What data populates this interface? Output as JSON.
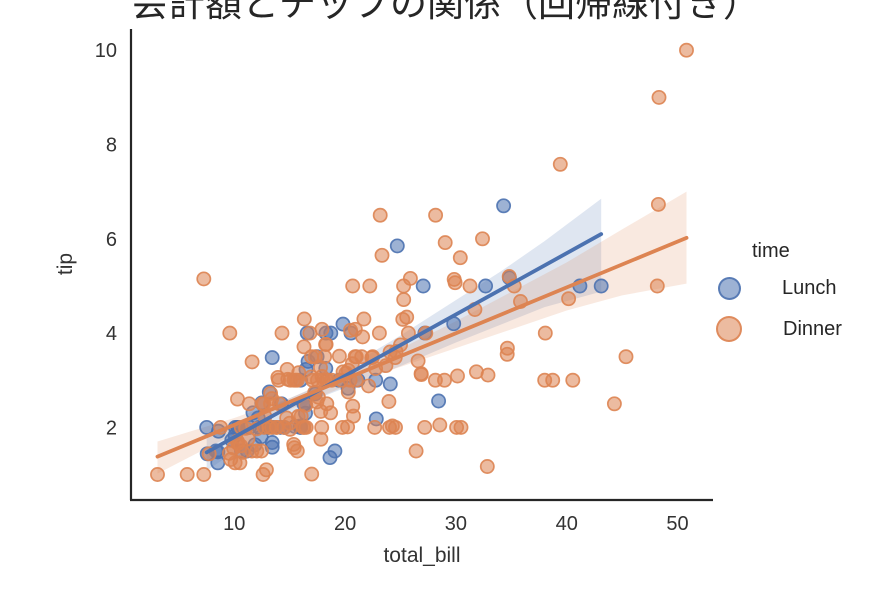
{
  "chart_data": {
    "type": "scatter",
    "title": "会計額とチップの関係（回帰線付き）",
    "xlabel": "total_bill",
    "ylabel": "tip",
    "xlim": [
      0.68,
      53.2
    ],
    "ylim": [
      0.46,
      10.45
    ],
    "x_ticks": [
      10,
      20,
      30,
      40,
      50
    ],
    "y_ticks": [
      2,
      4,
      6,
      8,
      10
    ],
    "grid": false,
    "legend": {
      "title": "time",
      "position": "right-outside",
      "entries": [
        {
          "label": "Lunch",
          "color": "#4C72B0"
        },
        {
          "label": "Dinner",
          "color": "#DD8452"
        }
      ]
    },
    "series": [
      {
        "name": "Lunch",
        "color": "#4C72B0",
        "regression_line": {
          "x": [
            7.51,
            43.11
          ],
          "y": [
            1.47,
            6.1
          ]
        },
        "ci_upper": [
          [
            7.51,
            1.85
          ],
          [
            12,
            2.3
          ],
          [
            17.2,
            2.85
          ],
          [
            25,
            3.95
          ],
          [
            34,
            5.3
          ],
          [
            38,
            5.95
          ],
          [
            43.11,
            6.85
          ]
        ],
        "ci_lower": [
          [
            7.51,
            1.08
          ],
          [
            12,
            1.8
          ],
          [
            17.2,
            2.58
          ],
          [
            25,
            3.3
          ],
          [
            30,
            3.8
          ],
          [
            38,
            4.55
          ],
          [
            43.11,
            4.88
          ]
        ],
        "points": [
          [
            27.2,
            4.0
          ],
          [
            22.76,
            3.0
          ],
          [
            17.29,
            2.71
          ],
          [
            19.44,
            3.0
          ],
          [
            16.66,
            3.4
          ],
          [
            10.07,
            1.83
          ],
          [
            32.68,
            5.0
          ],
          [
            15.98,
            2.03
          ],
          [
            34.83,
            5.17
          ],
          [
            13.03,
            2.0
          ],
          [
            18.28,
            4.0
          ],
          [
            24.71,
            5.85
          ],
          [
            21.16,
            3.0
          ],
          [
            10.65,
            1.5
          ],
          [
            12.43,
            1.8
          ],
          [
            24.08,
            2.92
          ],
          [
            11.69,
            2.31
          ],
          [
            13.42,
            1.68
          ],
          [
            14.26,
            2.5
          ],
          [
            15.95,
            2.0
          ],
          [
            12.48,
            2.52
          ],
          [
            29.8,
            4.2
          ],
          [
            8.52,
            1.48
          ],
          [
            14.52,
            2.0
          ],
          [
            11.38,
            2.0
          ],
          [
            22.82,
            2.18
          ],
          [
            19.08,
            1.5
          ],
          [
            20.27,
            2.83
          ],
          [
            11.17,
            1.5
          ],
          [
            12.26,
            2.0
          ],
          [
            18.26,
            3.25
          ],
          [
            8.51,
            1.25
          ],
          [
            10.33,
            2.0
          ],
          [
            14.15,
            2.0
          ],
          [
            16.0,
            2.0
          ],
          [
            13.16,
            2.75
          ],
          [
            17.47,
            3.5
          ],
          [
            34.3,
            6.7
          ],
          [
            41.19,
            5.0
          ],
          [
            27.05,
            5.0
          ],
          [
            16.43,
            2.3
          ],
          [
            8.35,
            1.5
          ],
          [
            18.64,
            1.36
          ],
          [
            11.87,
            1.63
          ],
          [
            9.78,
            1.73
          ],
          [
            7.51,
            2.0
          ],
          [
            19.81,
            4.19
          ],
          [
            28.44,
            2.56
          ],
          [
            15.48,
            2.02
          ],
          [
            16.58,
            4.0
          ],
          [
            7.56,
            1.44
          ],
          [
            10.34,
            2.0
          ],
          [
            43.11,
            5.0
          ],
          [
            13.0,
            2.0
          ],
          [
            13.51,
            2.0
          ],
          [
            18.71,
            4.0
          ],
          [
            12.74,
            2.01
          ],
          [
            13.0,
            2.0
          ],
          [
            16.4,
            2.5
          ],
          [
            20.53,
            4.0
          ],
          [
            16.47,
            3.23
          ],
          [
            12.16,
            2.2
          ],
          [
            13.42,
            3.48
          ],
          [
            8.58,
            1.92
          ],
          [
            15.98,
            3.0
          ],
          [
            13.42,
            1.58
          ],
          [
            16.27,
            2.5
          ],
          [
            10.09,
            2.0
          ]
        ]
      },
      {
        "name": "Dinner",
        "color": "#DD8452",
        "regression_line": {
          "x": [
            3.07,
            50.81
          ],
          "y": [
            1.38,
            6.02
          ]
        },
        "ci_upper": [
          [
            3.07,
            1.7
          ],
          [
            10,
            2.2
          ],
          [
            15,
            2.62
          ],
          [
            20.8,
            3.18
          ],
          [
            30,
            4.25
          ],
          [
            40,
            5.5
          ],
          [
            45,
            6.2
          ],
          [
            50.81,
            7.0
          ]
        ],
        "ci_lower": [
          [
            3.07,
            1.02
          ],
          [
            10,
            1.86
          ],
          [
            15,
            2.38
          ],
          [
            20.8,
            2.95
          ],
          [
            30,
            3.68
          ],
          [
            40,
            4.48
          ],
          [
            45,
            4.8
          ],
          [
            50.81,
            5.05
          ]
        ],
        "points": [
          [
            16.99,
            1.01
          ],
          [
            10.34,
            1.66
          ],
          [
            21.01,
            3.5
          ],
          [
            23.68,
            3.31
          ],
          [
            24.59,
            3.61
          ],
          [
            25.29,
            4.71
          ],
          [
            8.77,
            2.0
          ],
          [
            26.88,
            3.12
          ],
          [
            15.04,
            1.96
          ],
          [
            14.78,
            3.23
          ],
          [
            10.27,
            1.71
          ],
          [
            35.26,
            5.0
          ],
          [
            15.42,
            1.57
          ],
          [
            18.43,
            3.0
          ],
          [
            14.83,
            3.02
          ],
          [
            21.58,
            3.92
          ],
          [
            10.33,
            1.67
          ],
          [
            16.29,
            3.71
          ],
          [
            16.97,
            3.5
          ],
          [
            20.65,
            3.35
          ],
          [
            17.92,
            4.08
          ],
          [
            20.29,
            2.75
          ],
          [
            15.77,
            2.23
          ],
          [
            39.42,
            7.58
          ],
          [
            19.82,
            3.18
          ],
          [
            17.81,
            2.34
          ],
          [
            13.37,
            2.0
          ],
          [
            12.69,
            2.0
          ],
          [
            21.7,
            4.3
          ],
          [
            19.65,
            3.0
          ],
          [
            9.55,
            1.45
          ],
          [
            18.35,
            2.5
          ],
          [
            15.06,
            3.0
          ],
          [
            20.69,
            2.45
          ],
          [
            17.78,
            3.27
          ],
          [
            24.06,
            3.6
          ],
          [
            16.31,
            2.0
          ],
          [
            16.93,
            3.07
          ],
          [
            18.69,
            2.31
          ],
          [
            31.27,
            5.0
          ],
          [
            16.04,
            2.24
          ],
          [
            17.46,
            2.54
          ],
          [
            13.94,
            3.06
          ],
          [
            9.68,
            1.32
          ],
          [
            30.4,
            5.6
          ],
          [
            18.29,
            3.0
          ],
          [
            22.23,
            5.0
          ],
          [
            32.4,
            6.0
          ],
          [
            28.55,
            2.05
          ],
          [
            18.04,
            3.0
          ],
          [
            12.54,
            2.5
          ],
          [
            10.29,
            2.6
          ],
          [
            34.81,
            5.2
          ],
          [
            9.94,
            1.56
          ],
          [
            25.56,
            4.34
          ],
          [
            19.49,
            3.51
          ],
          [
            38.01,
            3.0
          ],
          [
            26.41,
            1.5
          ],
          [
            11.24,
            1.76
          ],
          [
            48.27,
            6.73
          ],
          [
            20.29,
            3.21
          ],
          [
            13.81,
            2.0
          ],
          [
            11.02,
            1.98
          ],
          [
            18.29,
            3.76
          ],
          [
            17.59,
            2.64
          ],
          [
            20.08,
            3.15
          ],
          [
            16.45,
            2.47
          ],
          [
            3.07,
            1.0
          ],
          [
            20.23,
            2.01
          ],
          [
            15.01,
            2.09
          ],
          [
            12.02,
            1.97
          ],
          [
            17.07,
            3.0
          ],
          [
            26.86,
            3.14
          ],
          [
            25.28,
            5.0
          ],
          [
            14.73,
            2.2
          ],
          [
            10.51,
            1.25
          ],
          [
            17.92,
            3.08
          ],
          [
            28.97,
            3.0
          ],
          [
            22.49,
            3.5
          ],
          [
            5.75,
            1.0
          ],
          [
            16.32,
            4.3
          ],
          [
            22.75,
            3.25
          ],
          [
            40.17,
            4.73
          ],
          [
            27.28,
            4.0
          ],
          [
            12.03,
            1.5
          ],
          [
            21.01,
            3.0
          ],
          [
            12.46,
            1.5
          ],
          [
            11.35,
            2.5
          ],
          [
            15.38,
            3.0
          ],
          [
            44.3,
            2.5
          ],
          [
            22.42,
            3.48
          ],
          [
            20.92,
            4.08
          ],
          [
            15.36,
            1.64
          ],
          [
            20.49,
            4.06
          ],
          [
            25.21,
            4.29
          ],
          [
            18.24,
            3.76
          ],
          [
            14.31,
            4.0
          ],
          [
            14.0,
            3.0
          ],
          [
            7.25,
            1.0
          ],
          [
            38.07,
            4.0
          ],
          [
            23.95,
            2.55
          ],
          [
            25.71,
            4.0
          ],
          [
            17.31,
            3.5
          ],
          [
            29.93,
            5.07
          ],
          [
            14.07,
            2.5
          ],
          [
            13.13,
            2.0
          ],
          [
            17.26,
            2.74
          ],
          [
            24.55,
            2.0
          ],
          [
            19.77,
            2.0
          ],
          [
            29.85,
            5.14
          ],
          [
            48.17,
            5.0
          ],
          [
            25.0,
            3.75
          ],
          [
            13.39,
            2.61
          ],
          [
            16.49,
            2.0
          ],
          [
            21.5,
            3.5
          ],
          [
            12.66,
            2.5
          ],
          [
            16.21,
            2.0
          ],
          [
            13.81,
            2.0
          ],
          [
            17.51,
            3.0
          ],
          [
            24.52,
            3.48
          ],
          [
            20.76,
            2.24
          ],
          [
            31.71,
            4.5
          ],
          [
            10.59,
            1.61
          ],
          [
            10.63,
            2.0
          ],
          [
            50.81,
            10.0
          ],
          [
            15.81,
            3.16
          ],
          [
            7.25,
            5.15
          ],
          [
            31.85,
            3.18
          ],
          [
            16.82,
            4.0
          ],
          [
            32.9,
            3.11
          ],
          [
            17.89,
            2.0
          ],
          [
            14.48,
            2.0
          ],
          [
            9.6,
            4.0
          ],
          [
            34.63,
            3.55
          ],
          [
            34.65,
            3.68
          ],
          [
            23.33,
            5.65
          ],
          [
            45.35,
            3.5
          ],
          [
            23.17,
            6.5
          ],
          [
            40.55,
            3.0
          ],
          [
            20.69,
            5.0
          ],
          [
            20.9,
            3.5
          ],
          [
            30.46,
            2.0
          ],
          [
            18.15,
            3.5
          ],
          [
            23.1,
            4.0
          ],
          [
            15.69,
            1.5
          ],
          [
            26.59,
            3.41
          ],
          [
            38.73,
            3.0
          ],
          [
            24.27,
            2.03
          ],
          [
            12.76,
            2.23
          ],
          [
            30.06,
            2.0
          ],
          [
            25.89,
            5.16
          ],
          [
            48.33,
            9.0
          ],
          [
            13.27,
            2.5
          ],
          [
            28.17,
            6.5
          ],
          [
            12.9,
            1.1
          ],
          [
            28.15,
            3.0
          ],
          [
            11.59,
            1.5
          ],
          [
            7.74,
            1.44
          ],
          [
            30.14,
            3.09
          ],
          [
            20.45,
            3.0
          ],
          [
            13.28,
            2.72
          ],
          [
            22.12,
            2.88
          ],
          [
            24.01,
            2.0
          ],
          [
            15.69,
            3.0
          ],
          [
            11.61,
            3.39
          ],
          [
            10.77,
            1.47
          ],
          [
            15.53,
            3.0
          ],
          [
            10.07,
            1.25
          ],
          [
            12.6,
            1.0
          ],
          [
            32.83,
            1.17
          ],
          [
            35.83,
            4.67
          ],
          [
            29.03,
            5.92
          ],
          [
            27.18,
            2.0
          ],
          [
            22.67,
            2.0
          ],
          [
            17.82,
            1.75
          ],
          [
            18.78,
            3.0
          ]
        ]
      }
    ],
    "style": {
      "background": "#ffffff",
      "spine_color": "#262626",
      "tick_label_color": "#333333",
      "axis_label_color": "#333333",
      "title_color": "#262626",
      "point_fill_opacity": 0.55,
      "point_edge_opacity": 0.9,
      "band_opacity": 0.18
    }
  }
}
